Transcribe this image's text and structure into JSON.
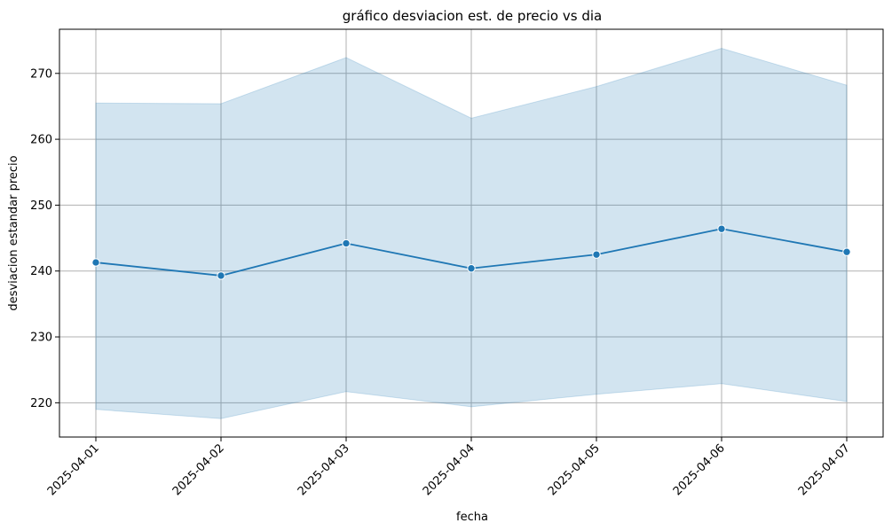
{
  "chart_data": {
    "type": "line",
    "title": "gráfico desviacion est. de precio vs dia",
    "xlabel": "fecha",
    "ylabel": "desviacion estandar precio",
    "categories": [
      "2025-04-01",
      "2025-04-02",
      "2025-04-03",
      "2025-04-04",
      "2025-04-05",
      "2025-04-06",
      "2025-04-07"
    ],
    "series": [
      {
        "values": [
          241.3,
          239.3,
          244.2,
          240.4,
          242.5,
          246.4,
          242.9
        ],
        "ci_upper": [
          265.5,
          265.4,
          272.4,
          263.2,
          268.0,
          273.8,
          268.2
        ],
        "ci_lower": [
          219.0,
          217.6,
          221.7,
          219.4,
          221.3,
          222.9,
          220.2
        ]
      }
    ],
    "yticks": [
      220,
      230,
      240,
      250,
      260,
      270
    ],
    "ylim": [
      214.8,
      276.7
    ],
    "grid": true,
    "markers": true,
    "line_color": "#1f77b4",
    "band_color": "#1f77b4",
    "grid_color": "#b0b0b0"
  }
}
